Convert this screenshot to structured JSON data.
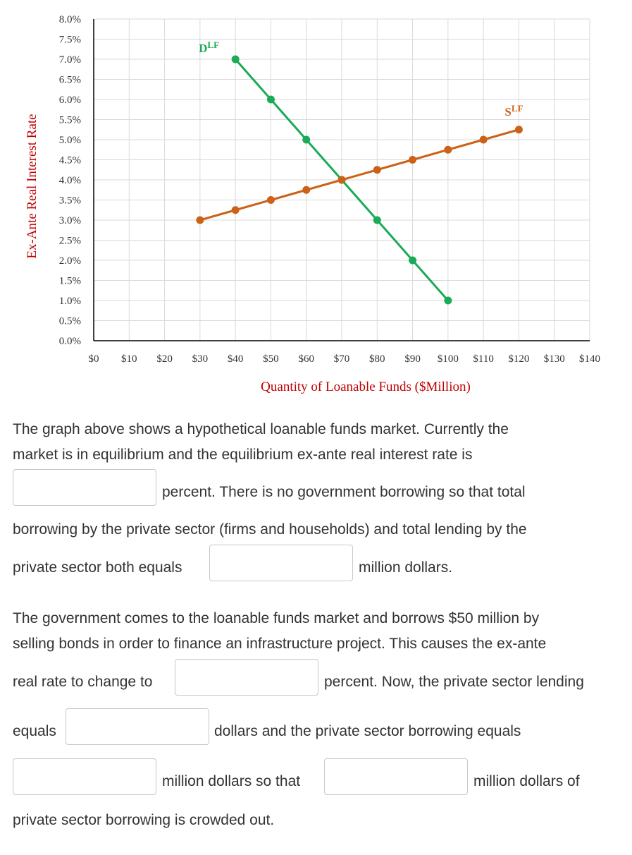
{
  "chart_data": {
    "type": "line",
    "xlabel": "Quantity of Loanable Funds ($Million)",
    "ylabel": "Ex-Ante Real Interest Rate",
    "xlim": [
      0,
      140
    ],
    "ylim": [
      0,
      8
    ],
    "x_ticks": [
      "$0",
      "$10",
      "$20",
      "$30",
      "$40",
      "$50",
      "$60",
      "$70",
      "$80",
      "$90",
      "$100",
      "$110",
      "$120",
      "$130",
      "$140"
    ],
    "y_ticks": [
      "0.0%",
      "0.5%",
      "1.0%",
      "1.5%",
      "2.0%",
      "2.5%",
      "3.0%",
      "3.5%",
      "4.0%",
      "4.5%",
      "5.0%",
      "5.5%",
      "6.0%",
      "6.5%",
      "7.0%",
      "7.5%",
      "8.0%"
    ],
    "grid": true,
    "series": [
      {
        "name": "DLF",
        "label_main": "D",
        "label_sup": "LF",
        "color": "#1aab56",
        "points": [
          [
            40,
            7.0
          ],
          [
            50,
            6.0
          ],
          [
            60,
            5.0
          ],
          [
            70,
            4.0
          ],
          [
            80,
            3.0
          ],
          [
            90,
            2.0
          ],
          [
            100,
            1.0
          ]
        ]
      },
      {
        "name": "SLF",
        "label_main": "S",
        "label_sup": "LF",
        "color": "#cc6218",
        "points": [
          [
            30,
            3.0
          ],
          [
            40,
            3.25
          ],
          [
            50,
            3.5
          ],
          [
            60,
            3.75
          ],
          [
            70,
            4.0
          ],
          [
            80,
            4.25
          ],
          [
            90,
            4.5
          ],
          [
            100,
            4.75
          ],
          [
            110,
            5.0
          ],
          [
            120,
            5.25
          ]
        ]
      }
    ]
  },
  "question": {
    "p1_line1": "The graph above shows a hypothetical loanable funds market. Currently the",
    "p1_line2": "market is in equilibrium and the equilibrium ex-ante real interest rate is",
    "p1_after_blank1": "percent. There is no government borrowing so that total",
    "p1_line4": "borrowing by the private sector (firms and households) and total lending by the",
    "p1_line5_before": "private sector both equals",
    "p1_line5_after": "million dollars.",
    "p2_line1": "The government comes to the loanable funds market and borrows $50 million by",
    "p2_line2": "selling bonds in order to finance an infrastructure project. This causes the ex-ante",
    "p2_line3_before": "real rate to change to",
    "p2_line3_after": "percent. Now, the private sector lending",
    "p2_line4_before": "equals",
    "p2_line4_after": "dollars and the private sector borrowing equals",
    "p2_line5_middle": "million dollars so that",
    "p2_line5_after": "million dollars of",
    "p2_line6": "private sector borrowing is crowded out.",
    "blanks": [
      "",
      "",
      "",
      "",
      "",
      ""
    ]
  }
}
